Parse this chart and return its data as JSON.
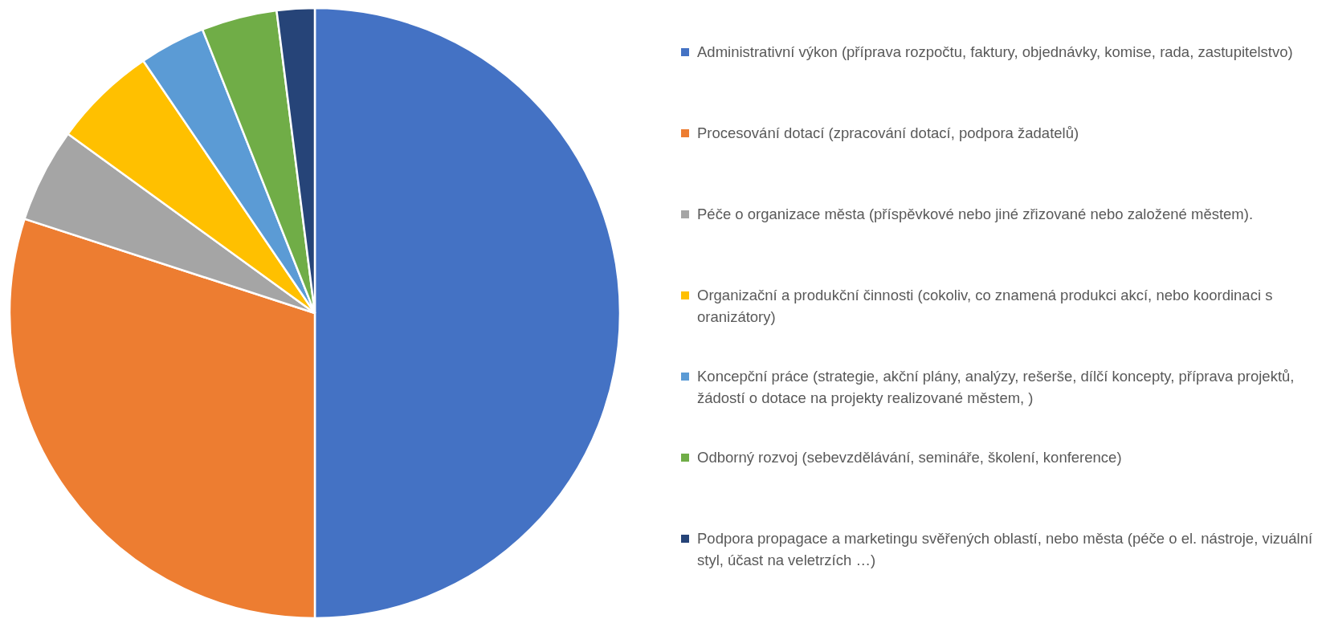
{
  "chart_data": {
    "type": "pie",
    "legend": "right",
    "categories": [
      "Administrativní výkon (příprava rozpočtu, faktury, objednávky, komise, rada, zastupitelstvo)",
      "Procesování dotací (zpracování dotací, podpora žadatelů)",
      "Péče o organizace města (příspěvkové nebo jiné zřizované nebo založené městem).",
      "Organizační a produkční činnosti (cokoliv, co znamená produkci akcí, nebo koordinaci s oranizátory)",
      "Koncepční práce (strategie, akční plány, analýzy, rešerše, dílčí koncepty, příprava projektů, žádostí o dotace na projekty realizované městem, )",
      "Odborný rozvoj (sebevzdělávání, semináře, školení, konference)",
      "Podpora propagace a marketingu svěřených oblastí, nebo města (péče o el. nástroje, vizuální styl, účast na veletrzích …)"
    ],
    "values": [
      50,
      30,
      5,
      5.5,
      3.5,
      4,
      2
    ],
    "colors": [
      "#4472c4",
      "#ed7d31",
      "#a5a5a5",
      "#ffc000",
      "#5b9bd5",
      "#70ad47",
      "#264478"
    ]
  }
}
